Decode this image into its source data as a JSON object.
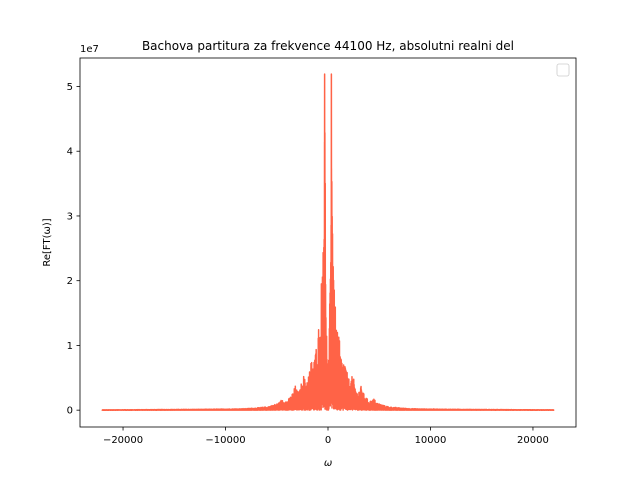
{
  "chart_data": {
    "type": "line",
    "title": "Bachova partitura za frekvence 44100 Hz, absolutni realni del",
    "xlabel": "ω",
    "ylabel": "Re[FT(ω)]",
    "y_offset_label": "1e7",
    "xlim": [
      -24200,
      24200
    ],
    "ylim": [
      -0.26,
      5.44
    ],
    "x_ticks": [
      -20000,
      -10000,
      0,
      10000,
      20000
    ],
    "x_tick_labels": [
      "−20000",
      "−10000",
      "0",
      "10000",
      "20000"
    ],
    "y_ticks": [
      0,
      1,
      2,
      3,
      4,
      5
    ],
    "y_tick_labels": [
      "0",
      "1",
      "2",
      "3",
      "4",
      "5"
    ],
    "grid": false,
    "legend": "top-right (empty)",
    "line_color": "#ff6347",
    "series": [
      {
        "envelope": [
          [
            -22050,
            0.005
          ],
          [
            -20000,
            0.006
          ],
          [
            -18000,
            0.008
          ],
          [
            -16000,
            0.01
          ],
          [
            -14000,
            0.012
          ],
          [
            -12000,
            0.014
          ],
          [
            -10000,
            0.018
          ],
          [
            -9000,
            0.02
          ],
          [
            -8000,
            0.025
          ],
          [
            -7000,
            0.035
          ],
          [
            -6000,
            0.05
          ],
          [
            -5500,
            0.07
          ],
          [
            -5000,
            0.1
          ],
          [
            -4700,
            0.12
          ],
          [
            -4500,
            0.18
          ],
          [
            -4300,
            0.15
          ],
          [
            -4000,
            0.14
          ],
          [
            -3700,
            0.2
          ],
          [
            -3400,
            0.28
          ],
          [
            -3200,
            0.38
          ],
          [
            -3000,
            0.3
          ],
          [
            -2800,
            0.28
          ],
          [
            -2600,
            0.42
          ],
          [
            -2400,
            0.55
          ],
          [
            -2200,
            0.45
          ],
          [
            -2000,
            0.5
          ],
          [
            -1800,
            0.62
          ],
          [
            -1600,
            0.8
          ],
          [
            -1400,
            0.75
          ],
          [
            -1200,
            0.9
          ],
          [
            -1100,
            1.2
          ],
          [
            -1000,
            1.05
          ],
          [
            -900,
            1.35
          ],
          [
            -800,
            1.25
          ],
          [
            -700,
            1.65
          ],
          [
            -600,
            2.3
          ],
          [
            -500,
            3.1
          ],
          [
            -400,
            3.5
          ],
          [
            -330,
            5.19
          ],
          [
            -260,
            3.5
          ],
          [
            -200,
            2.0
          ],
          [
            -120,
            1.1
          ],
          [
            -40,
            0.6
          ],
          [
            0,
            0.0
          ],
          [
            40,
            0.6
          ],
          [
            120,
            1.1
          ],
          [
            200,
            2.0
          ],
          [
            260,
            3.5
          ],
          [
            330,
            5.19
          ],
          [
            400,
            3.5
          ],
          [
            500,
            3.1
          ],
          [
            600,
            2.3
          ],
          [
            700,
            1.65
          ],
          [
            800,
            1.25
          ],
          [
            900,
            1.35
          ],
          [
            1000,
            1.05
          ],
          [
            1100,
            1.2
          ],
          [
            1200,
            0.9
          ],
          [
            1400,
            0.75
          ],
          [
            1600,
            0.8
          ],
          [
            1800,
            0.62
          ],
          [
            2000,
            0.5
          ],
          [
            2200,
            0.45
          ],
          [
            2400,
            0.55
          ],
          [
            2600,
            0.42
          ],
          [
            2800,
            0.28
          ],
          [
            3000,
            0.3
          ],
          [
            3200,
            0.38
          ],
          [
            3400,
            0.28
          ],
          [
            3700,
            0.2
          ],
          [
            4000,
            0.14
          ],
          [
            4300,
            0.15
          ],
          [
            4500,
            0.18
          ],
          [
            4700,
            0.12
          ],
          [
            5000,
            0.1
          ],
          [
            5500,
            0.07
          ],
          [
            6000,
            0.05
          ],
          [
            7000,
            0.035
          ],
          [
            8000,
            0.025
          ],
          [
            9000,
            0.02
          ],
          [
            10000,
            0.018
          ],
          [
            12000,
            0.014
          ],
          [
            14000,
            0.012
          ],
          [
            16000,
            0.01
          ],
          [
            18000,
            0.008
          ],
          [
            20000,
            0.006
          ],
          [
            22050,
            0.005
          ]
        ]
      }
    ]
  }
}
